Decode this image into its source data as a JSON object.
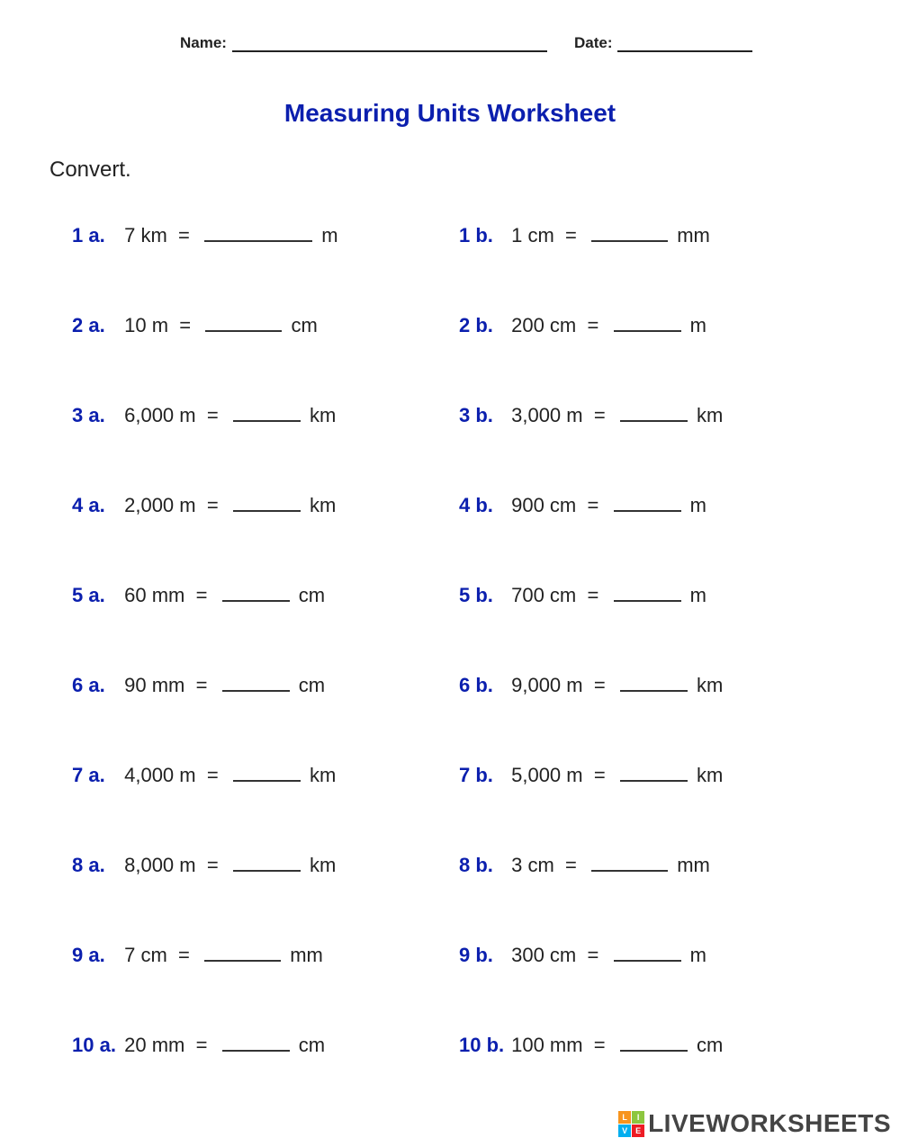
{
  "header": {
    "name_label": "Name:",
    "date_label": "Date:"
  },
  "title": "Measuring Units Worksheet",
  "instruction": "Convert.",
  "colors": {
    "accent": "#0b1fae",
    "text": "#222222",
    "underline": "#333333",
    "background": "#ffffff"
  },
  "fontsize": {
    "title": 28,
    "body": 22,
    "instruction": 24,
    "header": 17
  },
  "problems": [
    {
      "a": {
        "num": "1 a.",
        "lhs": "7 km",
        "unit": "m",
        "blank_w": 120
      },
      "b": {
        "num": "1 b.",
        "lhs": "1 cm",
        "unit": "mm",
        "blank_w": 85
      }
    },
    {
      "a": {
        "num": "2 a.",
        "lhs": "10 m",
        "unit": "cm",
        "blank_w": 85
      },
      "b": {
        "num": "2 b.",
        "lhs": "200 cm",
        "unit": "m",
        "blank_w": 75
      }
    },
    {
      "a": {
        "num": "3 a.",
        "lhs": "6,000 m",
        "unit": "km",
        "blank_w": 75
      },
      "b": {
        "num": "3 b.",
        "lhs": "3,000 m",
        "unit": "km",
        "blank_w": 75
      }
    },
    {
      "a": {
        "num": "4 a.",
        "lhs": "2,000 m",
        "unit": "km",
        "blank_w": 75
      },
      "b": {
        "num": "4 b.",
        "lhs": "900 cm",
        "unit": "m",
        "blank_w": 75
      }
    },
    {
      "a": {
        "num": "5 a.",
        "lhs": "60 mm",
        "unit": "cm",
        "blank_w": 75
      },
      "b": {
        "num": "5 b.",
        "lhs": "700 cm",
        "unit": "m",
        "blank_w": 75
      }
    },
    {
      "a": {
        "num": "6 a.",
        "lhs": "90 mm",
        "unit": "cm",
        "blank_w": 75
      },
      "b": {
        "num": "6 b.",
        "lhs": "9,000 m",
        "unit": "km",
        "blank_w": 75
      }
    },
    {
      "a": {
        "num": "7 a.",
        "lhs": "4,000 m",
        "unit": "km",
        "blank_w": 75
      },
      "b": {
        "num": "7 b.",
        "lhs": "5,000 m",
        "unit": "km",
        "blank_w": 75
      }
    },
    {
      "a": {
        "num": "8 a.",
        "lhs": "8,000 m",
        "unit": "km",
        "blank_w": 75
      },
      "b": {
        "num": "8 b.",
        "lhs": "3 cm",
        "unit": "mm",
        "blank_w": 85
      }
    },
    {
      "a": {
        "num": "9 a.",
        "lhs": "7 cm",
        "unit": "mm",
        "blank_w": 85
      },
      "b": {
        "num": "9 b.",
        "lhs": "300 cm",
        "unit": "m",
        "blank_w": 75
      }
    },
    {
      "a": {
        "num": "10 a.",
        "lhs": "20 mm",
        "unit": "cm",
        "blank_w": 75
      },
      "b": {
        "num": "10 b.",
        "lhs": "100 mm",
        "unit": "cm",
        "blank_w": 75
      }
    }
  ],
  "watermark": {
    "cells": [
      "L",
      "I",
      "V",
      "E"
    ],
    "cell_colors": [
      "#f7941d",
      "#8dc63f",
      "#00aeef",
      "#ed1c24"
    ],
    "text": "LIVEWORKSHEETS"
  }
}
